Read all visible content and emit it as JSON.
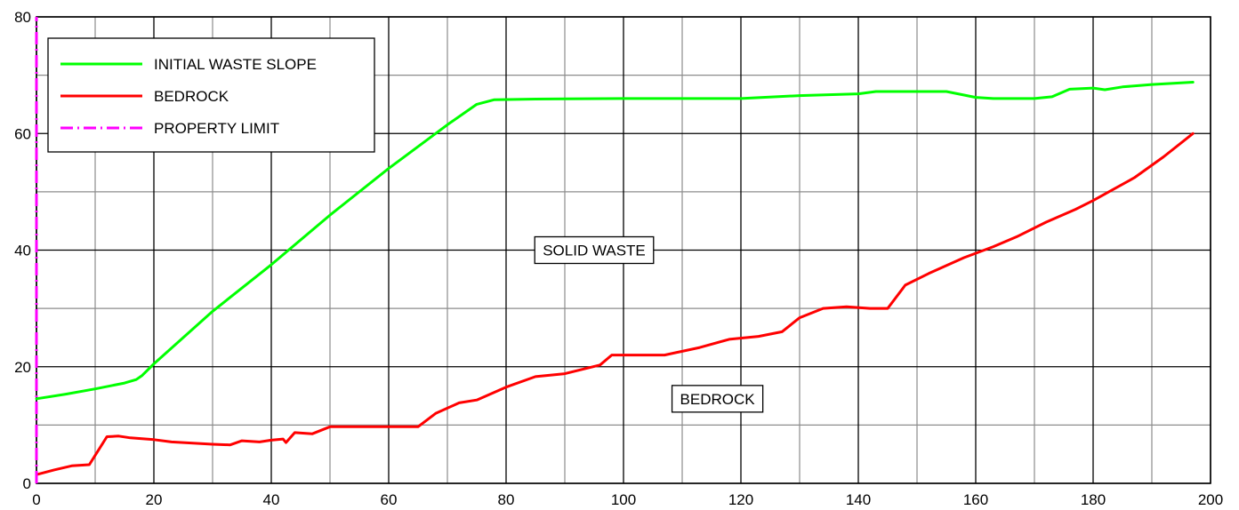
{
  "chart_data": {
    "type": "line",
    "title": "",
    "xlabel": "",
    "ylabel": "",
    "xlim": [
      0,
      200
    ],
    "ylim": [
      0,
      80
    ],
    "x_ticks": [
      0,
      20,
      40,
      60,
      80,
      100,
      120,
      140,
      160,
      180,
      200
    ],
    "y_ticks": [
      0,
      20,
      40,
      60,
      80
    ],
    "grid": true,
    "legend_position": "top-left",
    "series": [
      {
        "name": "INITIAL WASTE SLOPE",
        "color": "#00ff00",
        "style": "solid",
        "points": [
          [
            0,
            14.5
          ],
          [
            5,
            15.3
          ],
          [
            10,
            16.2
          ],
          [
            15,
            17.2
          ],
          [
            17,
            17.8
          ],
          [
            18,
            18.5
          ],
          [
            20,
            20.5
          ],
          [
            30,
            29.5
          ],
          [
            40,
            37.5
          ],
          [
            50,
            46
          ],
          [
            60,
            54
          ],
          [
            70,
            61.5
          ],
          [
            75,
            65
          ],
          [
            78,
            65.8
          ],
          [
            85,
            65.9
          ],
          [
            100,
            66
          ],
          [
            120,
            66
          ],
          [
            130,
            66.5
          ],
          [
            140,
            66.8
          ],
          [
            143,
            67.2
          ],
          [
            155,
            67.2
          ],
          [
            160,
            66.2
          ],
          [
            163,
            66
          ],
          [
            170,
            66
          ],
          [
            173,
            66.3
          ],
          [
            176,
            67.6
          ],
          [
            180,
            67.8
          ],
          [
            182,
            67.5
          ],
          [
            185,
            68
          ],
          [
            190,
            68.4
          ],
          [
            197,
            68.8
          ]
        ]
      },
      {
        "name": "BEDROCK",
        "color": "#ff0000",
        "style": "solid",
        "points": [
          [
            0,
            1.5
          ],
          [
            3,
            2.3
          ],
          [
            6,
            3
          ],
          [
            9,
            3.2
          ],
          [
            12,
            8
          ],
          [
            14,
            8.1
          ],
          [
            16,
            7.8
          ],
          [
            20,
            7.5
          ],
          [
            23,
            7.1
          ],
          [
            30,
            6.7
          ],
          [
            33,
            6.6
          ],
          [
            35,
            7.3
          ],
          [
            38,
            7.1
          ],
          [
            40,
            7.4
          ],
          [
            42,
            7.6
          ],
          [
            42.5,
            7
          ],
          [
            44,
            8.7
          ],
          [
            47,
            8.5
          ],
          [
            50,
            9.7
          ],
          [
            60,
            9.7
          ],
          [
            65,
            9.7
          ],
          [
            68,
            12
          ],
          [
            72,
            13.8
          ],
          [
            75,
            14.3
          ],
          [
            80,
            16.5
          ],
          [
            85,
            18.3
          ],
          [
            90,
            18.8
          ],
          [
            96,
            20.3
          ],
          [
            98,
            22
          ],
          [
            102,
            22
          ],
          [
            107,
            22
          ],
          [
            113,
            23.3
          ],
          [
            118,
            24.7
          ],
          [
            123,
            25.2
          ],
          [
            127,
            26
          ],
          [
            130,
            28.4
          ],
          [
            134,
            30
          ],
          [
            138,
            30.3
          ],
          [
            142,
            30
          ],
          [
            145,
            30
          ],
          [
            148,
            34
          ],
          [
            152,
            36
          ],
          [
            158,
            38.7
          ],
          [
            163,
            40.6
          ],
          [
            167,
            42.3
          ],
          [
            172,
            44.8
          ],
          [
            177,
            47
          ],
          [
            180,
            48.5
          ],
          [
            187,
            52.4
          ],
          [
            192,
            56
          ],
          [
            197,
            60
          ]
        ]
      },
      {
        "name": "PROPERTY LIMIT",
        "color": "#ff00ff",
        "style": "dash-dot",
        "points": [
          [
            0,
            0
          ],
          [
            0,
            80
          ]
        ]
      }
    ],
    "annotations": [
      {
        "text": "SOLID WASTE",
        "x": 95,
        "y": 40
      },
      {
        "text": "BEDROCK",
        "x": 116,
        "y": 14.5
      }
    ]
  }
}
